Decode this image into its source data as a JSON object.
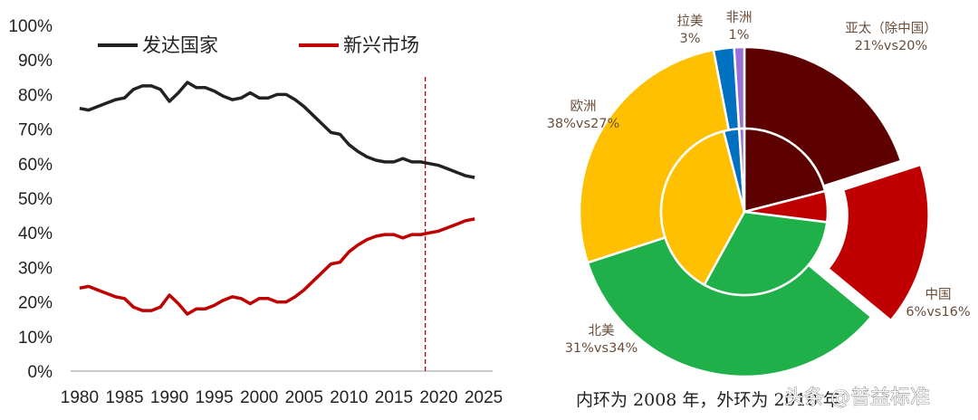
{
  "chart_data": [
    {
      "type": "line",
      "title": "",
      "xlabel": "",
      "ylabel": "",
      "x_ticks": [
        1980,
        1985,
        1990,
        1995,
        2000,
        2005,
        2010,
        2015,
        2020,
        2025
      ],
      "xlim": [
        1979,
        2026
      ],
      "ylim": [
        0,
        100
      ],
      "y_ticks": [
        "0%",
        "10%",
        "20%",
        "30%",
        "40%",
        "50%",
        "60%",
        "70%",
        "80%",
        "90%",
        "100%"
      ],
      "grid": false,
      "legend": "top",
      "reference_line": {
        "x": 2018.5,
        "style": "dashed",
        "color": "#c00000"
      },
      "series": [
        {
          "name": "发达国家",
          "color": "#222222",
          "x": [
            1980,
            1981,
            1982,
            1983,
            1984,
            1985,
            1986,
            1987,
            1988,
            1989,
            1990,
            1991,
            1992,
            1993,
            1994,
            1995,
            1996,
            1997,
            1998,
            1999,
            2000,
            2001,
            2002,
            2003,
            2004,
            2005,
            2006,
            2007,
            2008,
            2009,
            2010,
            2011,
            2012,
            2013,
            2014,
            2015,
            2016,
            2017,
            2018,
            2019,
            2020,
            2021,
            2022,
            2023,
            2024
          ],
          "y": [
            76,
            75.5,
            76.5,
            77.5,
            78.5,
            79,
            81.5,
            82.5,
            82.5,
            81.5,
            78,
            80.5,
            83.5,
            82,
            82,
            81,
            79.5,
            78.5,
            79,
            80.5,
            79,
            79,
            80,
            80,
            78.5,
            76.5,
            74,
            71.5,
            69,
            68.5,
            65.5,
            63.5,
            62,
            61,
            60.5,
            60.5,
            61.5,
            60.5,
            60.5,
            60,
            59.5,
            58.5,
            57.5,
            56.5,
            56
          ]
        },
        {
          "name": "新兴市场",
          "color": "#c00000",
          "x": [
            1980,
            1981,
            1982,
            1983,
            1984,
            1985,
            1986,
            1987,
            1988,
            1989,
            1990,
            1991,
            1992,
            1993,
            1994,
            1995,
            1996,
            1997,
            1998,
            1999,
            2000,
            2001,
            2002,
            2003,
            2004,
            2005,
            2006,
            2007,
            2008,
            2009,
            2010,
            2011,
            2012,
            2013,
            2014,
            2015,
            2016,
            2017,
            2018,
            2019,
            2020,
            2021,
            2022,
            2023,
            2024
          ],
          "y": [
            24,
            24.5,
            23.5,
            22.5,
            21.5,
            21,
            18.5,
            17.5,
            17.5,
            18.5,
            22,
            19.5,
            16.5,
            18,
            18,
            19,
            20.5,
            21.5,
            21,
            19.5,
            21,
            21,
            20,
            20,
            21.5,
            23.5,
            26,
            28.5,
            31,
            31.5,
            34.5,
            36.5,
            38,
            39,
            39.5,
            39.5,
            38.5,
            39.5,
            39.5,
            40,
            40.5,
            41.5,
            42.5,
            43.5,
            44
          ]
        }
      ]
    },
    {
      "type": "pie",
      "subtype": "nested-donut",
      "caption": "内环为 2008 年，外环为 2018 年",
      "categories": [
        "亚太（除中国）",
        "中国",
        "北美",
        "欧洲",
        "拉美",
        "非洲"
      ],
      "colors": [
        "#5c0000",
        "#c00000",
        "#1fb04a",
        "#fec000",
        "#0070c0",
        "#9b6fd6"
      ],
      "label_lines": [
        [
          "亚太（除中国）",
          "21%vs20%"
        ],
        [
          "中国",
          "6%vs16%"
        ],
        [
          "北美",
          "31%vs34%"
        ],
        [
          "欧洲",
          "38%vs27%"
        ],
        [
          "拉美",
          "3%"
        ],
        [
          "非洲",
          "1%"
        ]
      ],
      "series": [
        {
          "name": "2008",
          "values": [
            21,
            6,
            31,
            38,
            3,
            1
          ]
        },
        {
          "name": "2018",
          "values": [
            20,
            16,
            34,
            27,
            2,
            1
          ]
        }
      ],
      "exploded_category": "中国"
    }
  ],
  "watermark": "头条 @普益标准"
}
